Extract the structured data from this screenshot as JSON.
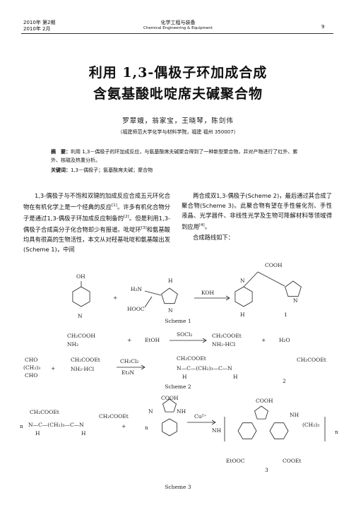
{
  "header": {
    "issue": "2010年 第2期",
    "date": "2010年 2月",
    "journal": "化学工程与装备",
    "journal_en": "Chemical Engineering & Equipment",
    "page": "9"
  },
  "title": [
    "利用 1,3-偶极子环加成合成",
    "含氨基酸吡啶席夫碱聚合物"
  ],
  "authors": "罗翠娥，翁家宝，王晓琴，陈剑伟",
  "affiliation": "（福建师范大学化学与材料学院，福建 福州 350007）",
  "abstract": {
    "label": "摘　要：",
    "text": "利用 1,3－偶极子的环加成反应，与氨基酸席夫碱聚合得到了一种新型聚合物，并对产物进行了红外、紫外、核磁及热重分析。"
  },
  "keywords": {
    "label": "关键词：",
    "text": "1,3－偶极子；氨基酸席夫碱；聚合物"
  },
  "body": {
    "left": [
      {
        "text": "1,3-偶极子与不饱和双键的加成反应合成五元环化合物在有机化学上是一个经典的反应",
        "sup": "[1]"
      },
      {
        "text": "。许多有机化合物分子是通过1,3-偶极子环加成反应制备的",
        "sup": "[2]"
      },
      {
        "text": "。但是利用1,3-偶极子合成高分子化合物却少有报道。吡啶环",
        "sup": "[3]"
      },
      {
        "text": "和氨基酸均具有很高的生物活性，本文从对羟基吡啶和氨基酸出发(Scheme 1)，中间",
        "sup": ""
      }
    ],
    "right": [
      {
        "text": "两合成双1,3-偶极子(Scheme 2)，最后通过其合成了聚合物(Scheme 3)。此聚合物有望在手性催化剂、手性液晶、光学器件、非线性光学及生物可降解材料等领域得到应用",
        "sup": "[4]"
      },
      {
        "text": "。",
        "sup": ""
      }
    ],
    "route": "合成路线如下："
  },
  "schemes": [
    {
      "caption": "Scheme 1",
      "labels": [
        "OH",
        "N",
        "+",
        "H₂N",
        "HOOC",
        "N",
        "H",
        "KOH",
        "COOH",
        "N",
        "N",
        "H",
        "1"
      ]
    },
    {
      "caption": "Scheme 2",
      "labels": [
        "CH₂COOH",
        "NH₂",
        "+",
        "EtOH",
        "SOCl₂",
        "CH₂COOEt",
        "NH₂·HCl",
        "+",
        "H₂O",
        "CHO",
        "(CH₂)₃",
        "CHO",
        "+",
        "CH₂COOEt",
        "NH₂·HCl",
        "CH₂Cl₂",
        "Et₃N",
        "CH₂COOEt",
        "N—C—(CH₂)₃—C—N",
        "H",
        "H",
        "CH₂COOEt",
        "2"
      ]
    },
    {
      "caption": "Scheme 3",
      "labels": [
        "CH₂COOEt",
        "n",
        "N—C—(CH₂)₃—C—N",
        "H",
        "H",
        "CH₂COOEt",
        "+",
        "n",
        "COOH",
        "N",
        "NH",
        "Cu²⁺",
        "COOH",
        "NH",
        "(CH₂)₃",
        "n",
        "EtOOC",
        "COOEt",
        "NH",
        "3"
      ]
    }
  ]
}
